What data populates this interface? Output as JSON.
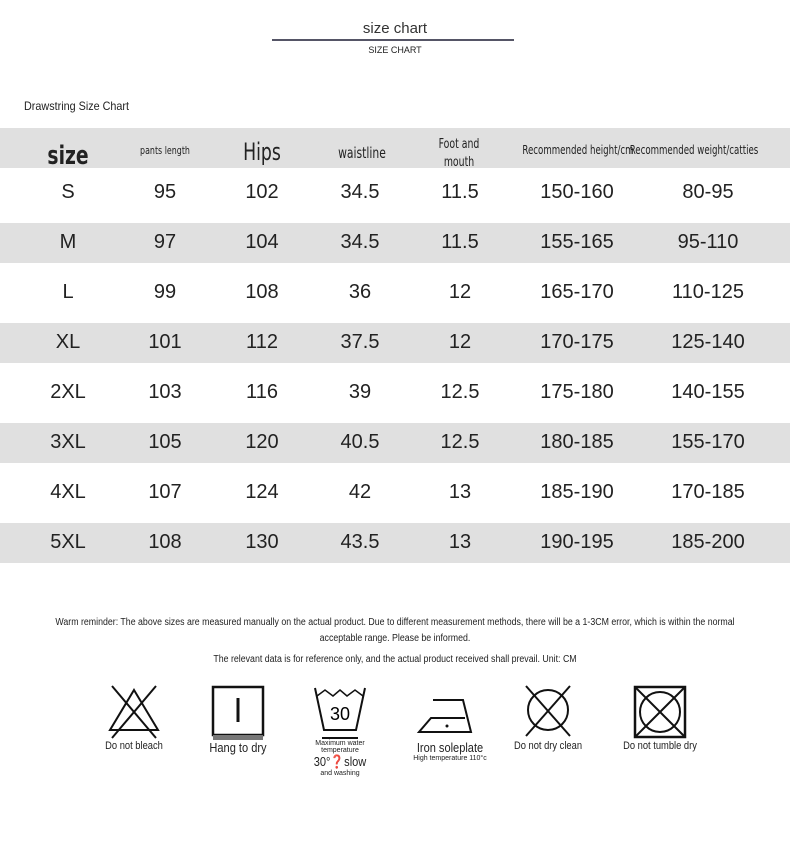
{
  "header": {
    "title": "size chart",
    "subtitle": "SIZE CHART"
  },
  "chart_name": "Drawstring Size Chart",
  "columns": [
    "size",
    "pants length",
    "Hips",
    "waistline",
    "Foot and mouth",
    "Recommended height/cm",
    "Recommended weight/catties"
  ],
  "rows": [
    [
      "S",
      "95",
      "102",
      "34.5",
      "11.5",
      "150-160",
      "80-95"
    ],
    [
      "M",
      "97",
      "104",
      "34.5",
      "11.5",
      "155-165",
      "95-110"
    ],
    [
      "L",
      "99",
      "108",
      "36",
      "12",
      "165-170",
      "110-125"
    ],
    [
      "XL",
      "101",
      "112",
      "37.5",
      "12",
      "170-175",
      "125-140"
    ],
    [
      "2XL",
      "103",
      "116",
      "39",
      "12.5",
      "175-180",
      "140-155"
    ],
    [
      "3XL",
      "105",
      "120",
      "40.5",
      "12.5",
      "180-185",
      "155-170"
    ],
    [
      "4XL",
      "107",
      "124",
      "42",
      "13",
      "185-190",
      "170-185"
    ],
    [
      "5XL",
      "108",
      "130",
      "43.5",
      "13",
      "190-195",
      "185-200"
    ]
  ],
  "notes": {
    "line1": "Warm reminder: The above sizes are measured manually on the actual product. Due to different measurement methods, there will be a 1-3CM error, which is within the normal",
    "line2": "acceptable range. Please be informed.",
    "line3": "The relevant data is for reference only, and the actual product received shall prevail. Unit: CM"
  },
  "care": [
    {
      "icon": "no-bleach-icon",
      "label": "Do not bleach"
    },
    {
      "icon": "hang-dry-icon",
      "label": "Hang to dry"
    },
    {
      "icon": "wash-30-icon",
      "wash_temp": "30",
      "small1": "Maximum water",
      "small2": "temperature",
      "label": "30°❓slow",
      "small3": "and washing"
    },
    {
      "icon": "iron-icon",
      "label": "Iron soleplate",
      "small1": "High temperature 110°c"
    },
    {
      "icon": "no-dry-clean-icon",
      "label": "Do not dry clean"
    },
    {
      "icon": "no-tumble-dry-icon",
      "label": "Do not tumble dry"
    }
  ]
}
